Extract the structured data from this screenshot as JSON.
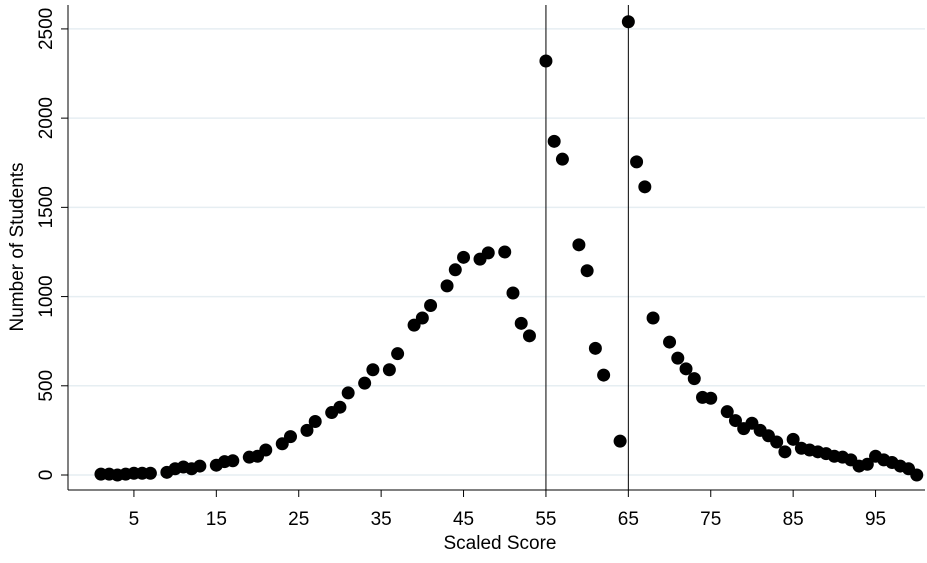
{
  "chart_data": {
    "type": "scatter",
    "x_label": "Scaled Score",
    "y_label": "Number of Students",
    "x": [
      1,
      2,
      3,
      4,
      5,
      6,
      7,
      9,
      10,
      11,
      12,
      13,
      15,
      16,
      17,
      19,
      20,
      21,
      23,
      24,
      26,
      27,
      29,
      30,
      31,
      33,
      34,
      36,
      37,
      39,
      40,
      41,
      43,
      44,
      45,
      47,
      48,
      50,
      51,
      52,
      53,
      55,
      56,
      57,
      59,
      60,
      61,
      62,
      64,
      65,
      66,
      67,
      68,
      70,
      71,
      72,
      73,
      74,
      75,
      77,
      78,
      79,
      80,
      81,
      82,
      83,
      84,
      85,
      86,
      87,
      88,
      89,
      90,
      91,
      92,
      93,
      94,
      95,
      96,
      97,
      98,
      99,
      100
    ],
    "values": [
      5,
      5,
      0,
      5,
      10,
      10,
      10,
      15,
      35,
      45,
      35,
      50,
      55,
      75,
      80,
      100,
      105,
      140,
      175,
      215,
      250,
      300,
      350,
      380,
      460,
      515,
      590,
      590,
      680,
      840,
      880,
      950,
      1060,
      1150,
      1220,
      1210,
      1245,
      1250,
      1020,
      850,
      780,
      2320,
      1870,
      1770,
      1290,
      1145,
      710,
      560,
      190,
      2540,
      1755,
      1615,
      880,
      745,
      655,
      595,
      540,
      435,
      430,
      355,
      305,
      260,
      290,
      250,
      220,
      185,
      130,
      200,
      150,
      140,
      130,
      120,
      105,
      100,
      85,
      50,
      60,
      105,
      85,
      70,
      50,
      35,
      0
    ],
    "color": "#000000",
    "xlim": [
      -3,
      101
    ],
    "xticks": [
      5,
      15,
      25,
      35,
      45,
      55,
      65,
      75,
      85,
      95
    ],
    "ylim": [
      -84,
      2634
    ],
    "yticks": [
      0,
      500,
      1000,
      1500,
      2000,
      2500
    ],
    "reference_lines": [
      55,
      65
    ],
    "grid": true
  }
}
